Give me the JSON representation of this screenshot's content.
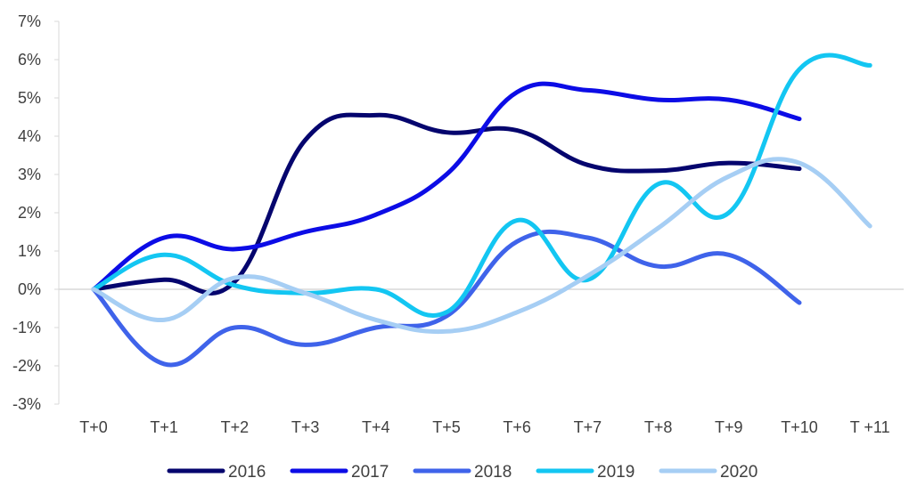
{
  "chart_data": {
    "type": "line",
    "title": "",
    "xlabel": "",
    "ylabel": "",
    "categories": [
      "T+0",
      "T+1",
      "T+2",
      "T+3",
      "T+4",
      "T+5",
      "T+6",
      "T+7",
      "T+8",
      "T+9",
      "T+10",
      "T +11"
    ],
    "y_ticks": [
      "7%",
      "6%",
      "5%",
      "4%",
      "3%",
      "2%",
      "1%",
      "0%",
      "-1%",
      "-2%",
      "-3%"
    ],
    "ylim": [
      -3,
      7
    ],
    "y_unit": "%",
    "grid": false,
    "zero_line": true,
    "smooth": true,
    "legend_position": "bottom",
    "series": [
      {
        "name": "2016",
        "color": "#05056e",
        "values": [
          0,
          0.25,
          0.2,
          3.9,
          4.55,
          4.1,
          4.15,
          3.25,
          3.1,
          3.3,
          3.15,
          null
        ]
      },
      {
        "name": "2017",
        "color": "#0c0ce6",
        "values": [
          0,
          1.35,
          1.05,
          1.5,
          1.95,
          3.0,
          5.15,
          5.2,
          4.95,
          4.95,
          4.45,
          null
        ]
      },
      {
        "name": "2018",
        "color": "#3f63ea",
        "values": [
          0,
          -1.95,
          -1.0,
          -1.45,
          -1.0,
          -0.7,
          1.25,
          1.35,
          0.6,
          0.9,
          -0.35,
          null
        ]
      },
      {
        "name": "2019",
        "color": "#13c6f2",
        "values": [
          0,
          0.9,
          0.1,
          -0.1,
          0.0,
          -0.6,
          1.8,
          0.25,
          2.75,
          2.0,
          5.75,
          5.85
        ]
      },
      {
        "name": "2020",
        "color": "#a6cef4",
        "values": [
          0,
          -0.8,
          0.3,
          -0.1,
          -0.8,
          -1.1,
          -0.6,
          0.35,
          1.6,
          2.95,
          3.3,
          1.65
        ]
      }
    ]
  }
}
